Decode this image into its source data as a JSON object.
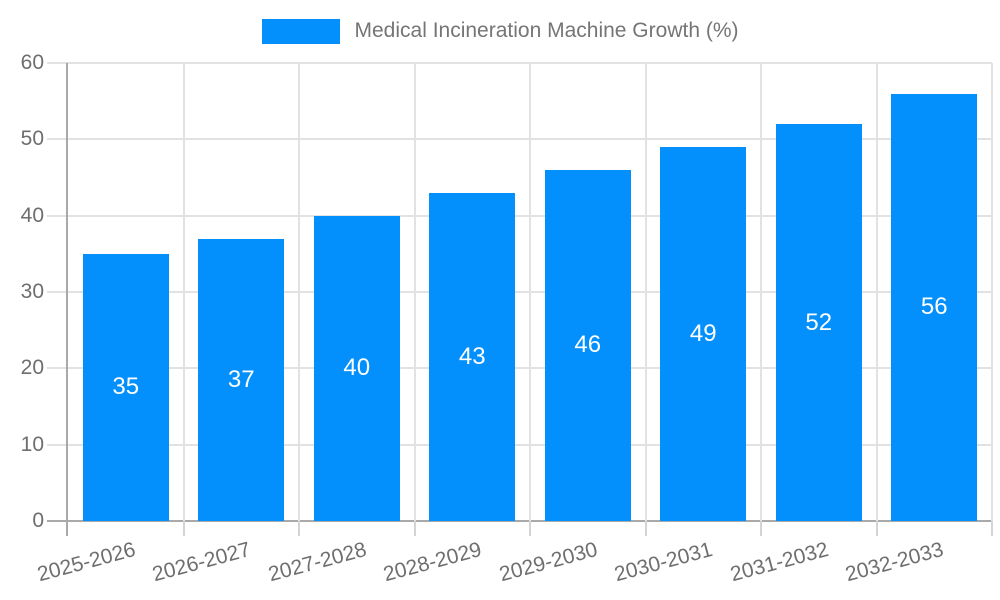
{
  "chart_data": {
    "type": "bar",
    "title": "Medical Incineration Machine Growth (%)",
    "legend": {
      "label": "Medical Incineration Machine Growth (%)",
      "position": "top"
    },
    "categories": [
      "2025-2026",
      "2026-2027",
      "2027-2028",
      "2028-2029",
      "2029-2030",
      "2030-2031",
      "2031-2032",
      "2032-2033"
    ],
    "values": [
      35,
      37,
      40,
      43,
      46,
      49,
      52,
      56
    ],
    "bar_labels_visible": true,
    "xlabel": "",
    "ylabel": "",
    "ylim": [
      0,
      60
    ],
    "yticks": [
      0,
      10,
      20,
      30,
      40,
      50,
      60
    ],
    "grid": true,
    "x_label_rotation_deg": -15,
    "colors": {
      "bar": "#0390fc",
      "bar_label": "#ffffff",
      "axis_text": "#6e6e6e",
      "legend_text": "#757575",
      "gridline": "#e2e2e2",
      "axis_line": "#a9a9a9",
      "tick": "#d4d4d4",
      "background": "#ffffff"
    }
  }
}
